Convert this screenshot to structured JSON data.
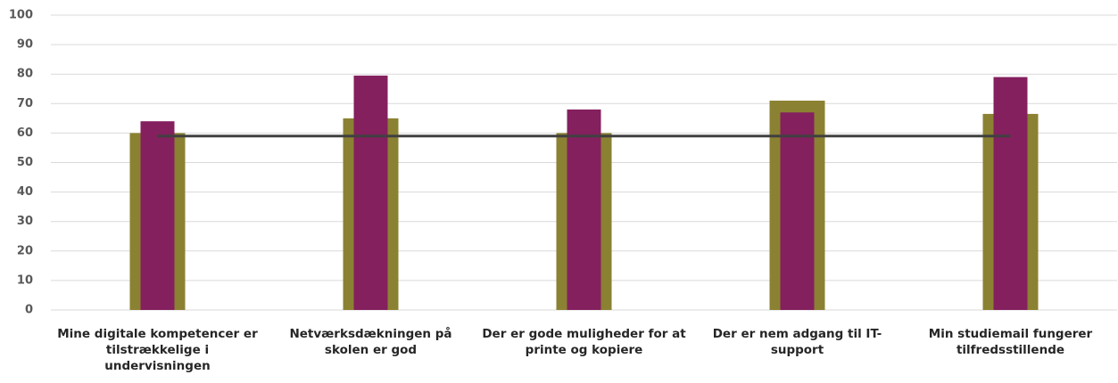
{
  "chart_data": {
    "type": "bar",
    "categories": [
      "Mine digitale kompetencer er tilstrækkelige i undervisningen",
      "Netværksdækningen på skolen er god",
      "Der er gode muligheder for at printe og kopiere",
      "Der er nem adgang til IT-support",
      "Min studiemail fungerer tilfredsstillende"
    ],
    "series": [
      {
        "type": "bar",
        "color": "#8b8132",
        "values": [
          60,
          65,
          60,
          71,
          66.5
        ]
      },
      {
        "type": "bar",
        "color": "#84205e",
        "values": [
          64,
          79.5,
          68,
          67,
          79
        ]
      },
      {
        "type": "line",
        "color": "#404040",
        "values": [
          59,
          59,
          59,
          59,
          59
        ]
      }
    ],
    "ylim": [
      0,
      100
    ],
    "yticks": [
      0,
      10,
      20,
      30,
      40,
      50,
      60,
      70,
      80,
      90,
      100
    ],
    "grid": true
  }
}
